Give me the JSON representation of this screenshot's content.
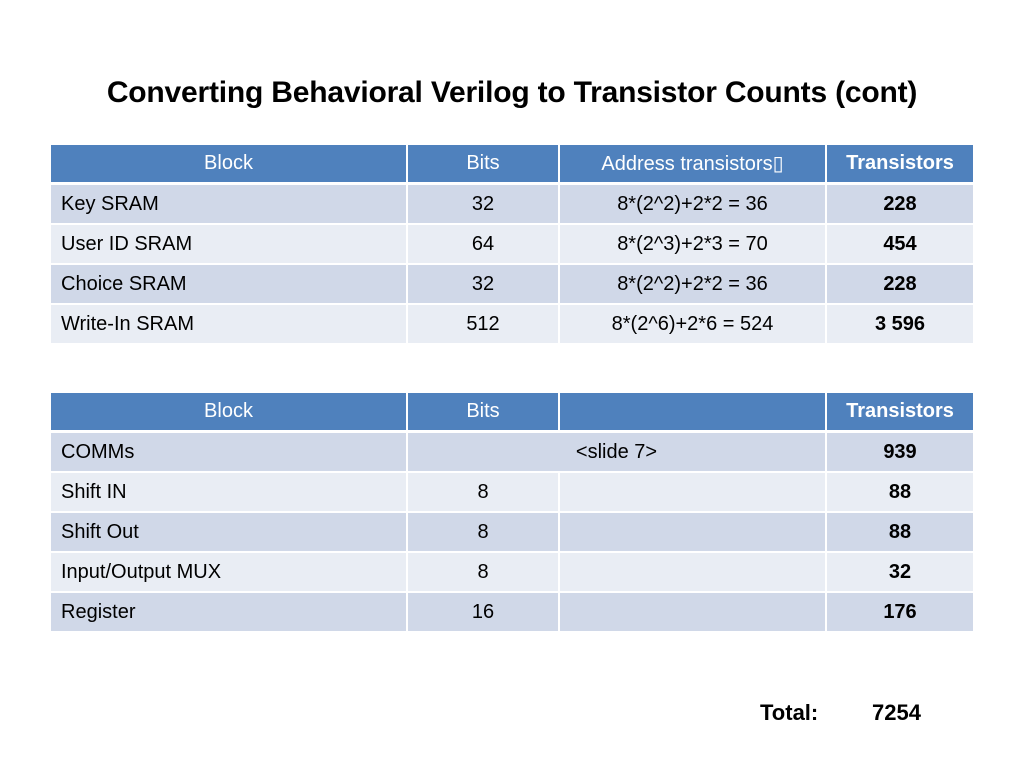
{
  "title": "Converting Behavioral Verilog to Transistor Counts (cont)",
  "table1": {
    "headers": [
      "Block",
      "Bits",
      "Address transistors▯",
      "Transistors"
    ],
    "rows": [
      [
        "Key SRAM",
        "32",
        "8*(2^2)+2*2 = 36",
        "228"
      ],
      [
        "User ID SRAM",
        "64",
        "8*(2^3)+2*3 = 70",
        "454"
      ],
      [
        "Choice SRAM",
        "32",
        "8*(2^2)+2*2 = 36",
        "228"
      ],
      [
        "Write-In SRAM",
        "512",
        "8*(2^6)+2*6 = 524",
        "3 596"
      ]
    ]
  },
  "table2": {
    "headers": [
      "Block",
      "Bits",
      "",
      "Transistors"
    ],
    "comms": {
      "block": "COMMs",
      "span": "<slide 7>",
      "transistors": "939"
    },
    "rows": [
      [
        "Shift IN",
        "8",
        "",
        "88"
      ],
      [
        "Shift Out",
        "8",
        "",
        "88"
      ],
      [
        "Input/Output MUX",
        "8",
        "",
        "32"
      ],
      [
        "Register",
        "16",
        "",
        "176"
      ]
    ]
  },
  "total": {
    "label": "Total:",
    "value": "7254"
  },
  "colors": {
    "header": "#4f81bd",
    "row_odd": "#d0d8e8",
    "row_even": "#e9edf4"
  }
}
